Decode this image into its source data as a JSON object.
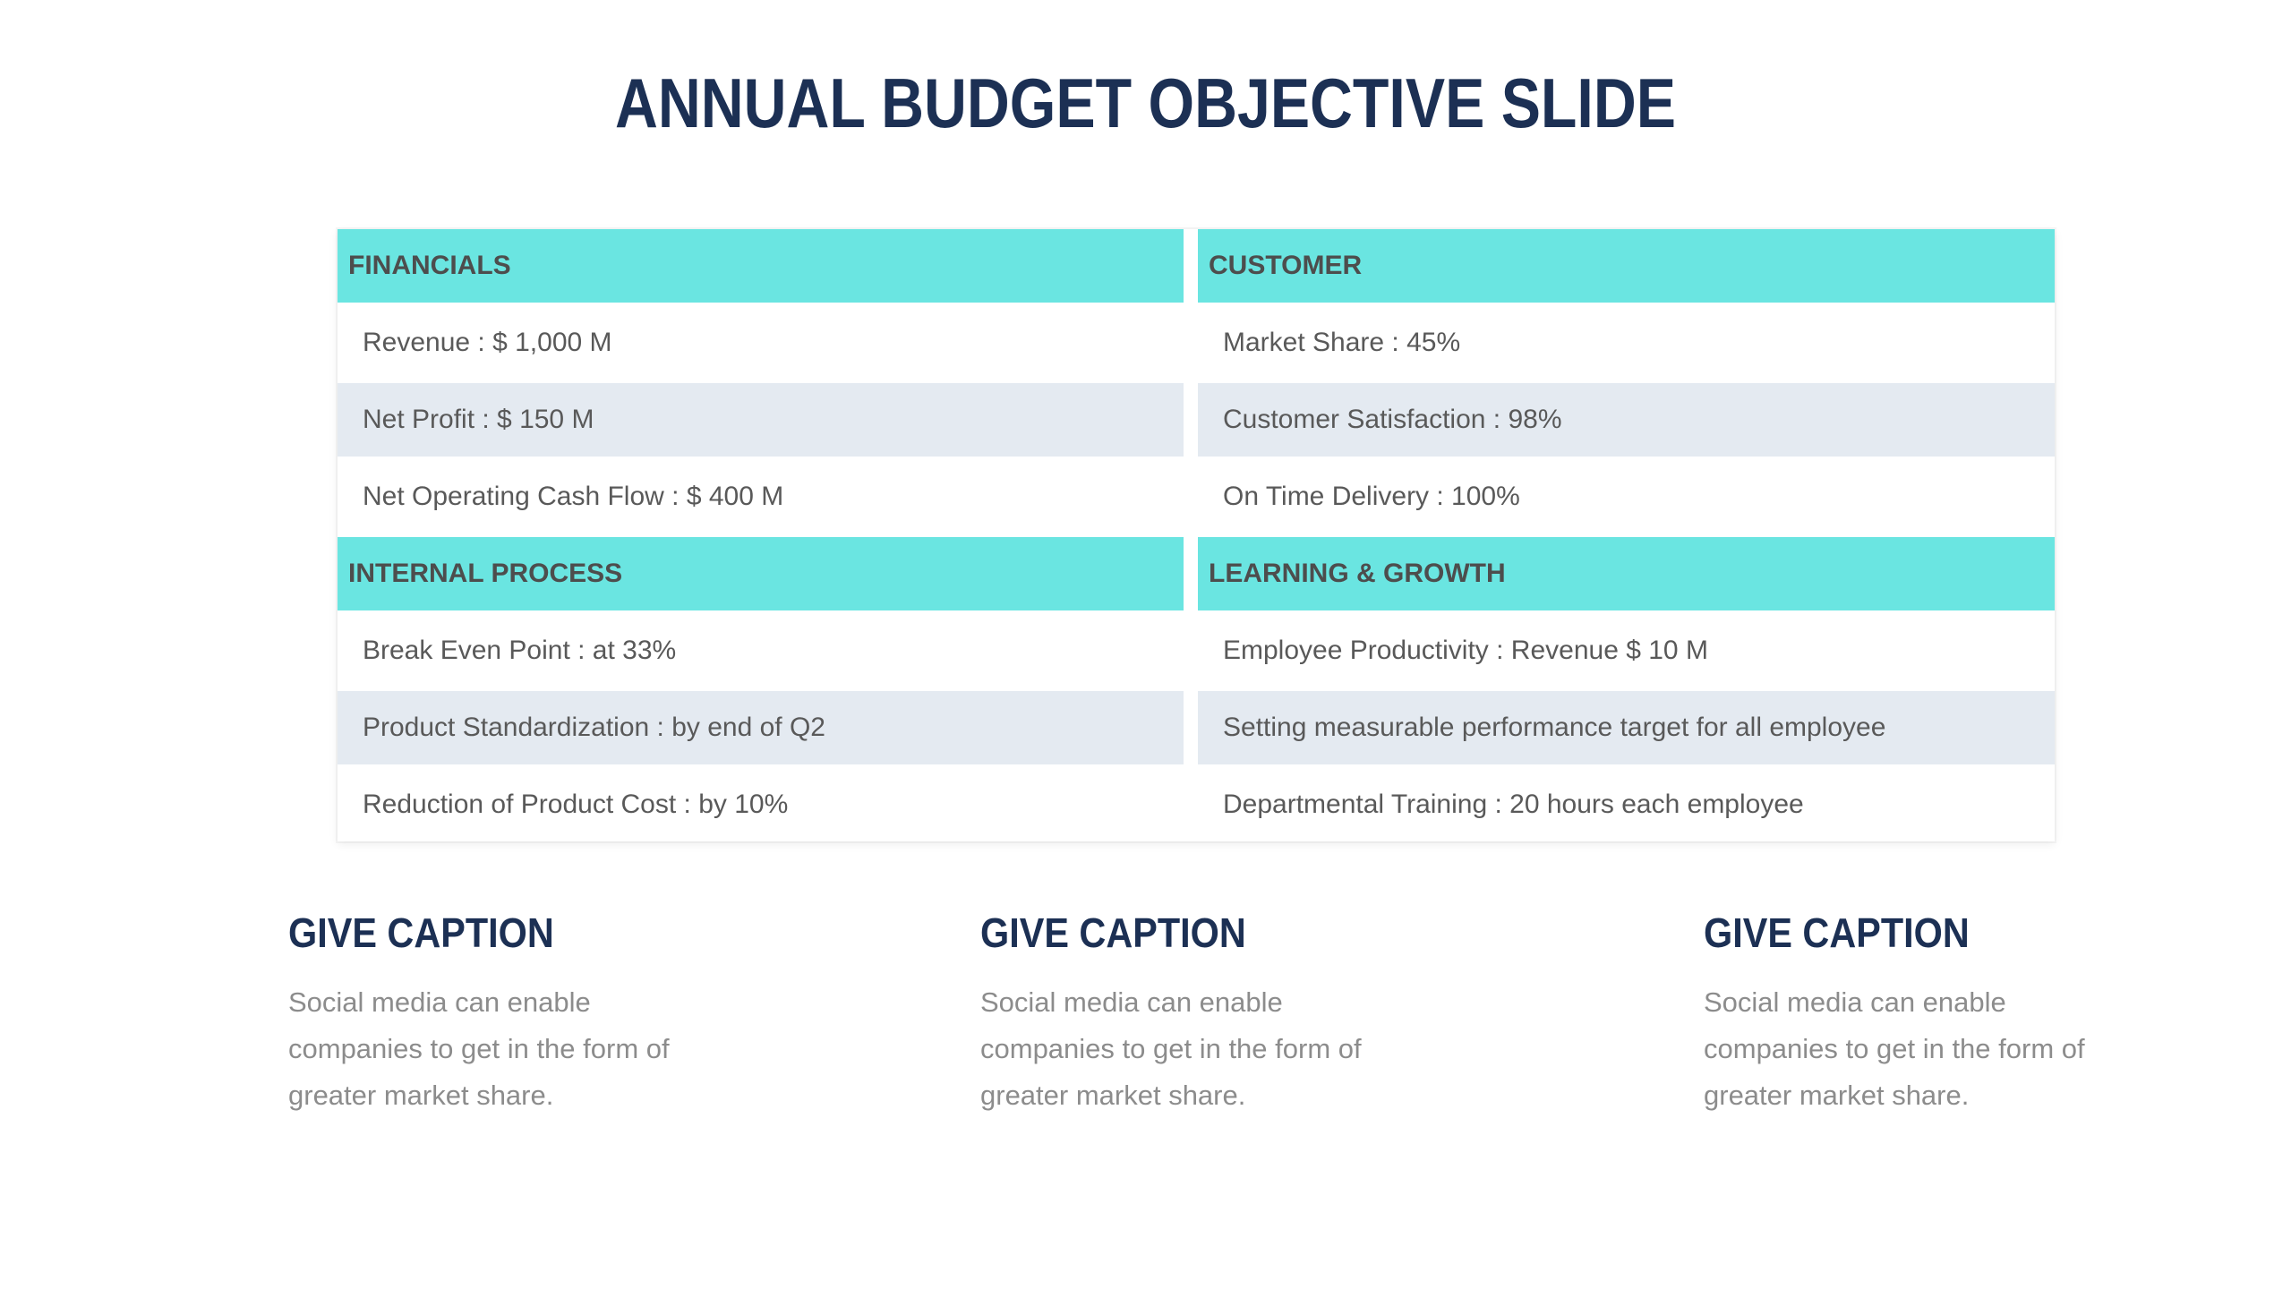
{
  "slide": {
    "title": "ANNUAL BUDGET OBJECTIVE SLIDE"
  },
  "colors": {
    "navy": "#1C3054",
    "turquoise": "#6AE5E1",
    "row_alt": "#E4EAF1",
    "header_text": "#4D4D4D",
    "cell_text": "#595959",
    "caption_text": "#8C8C8C"
  },
  "table": {
    "quadrants": [
      {
        "header": "FINANCIALS",
        "rows": [
          "Revenue : $ 1,000 M",
          "Net Profit : $ 150 M",
          "Net Operating Cash Flow : $ 400 M"
        ]
      },
      {
        "header": "CUSTOMER",
        "rows": [
          "Market Share : 45%",
          "Customer Satisfaction : 98%",
          "On Time Delivery : 100%"
        ]
      },
      {
        "header": "INTERNAL PROCESS",
        "rows": [
          "Break Even Point : at 33%",
          "Product Standardization : by end of Q2",
          "Reduction of Product Cost : by 10%"
        ]
      },
      {
        "header": "LEARNING & GROWTH",
        "rows": [
          "Employee Productivity : Revenue $ 10 M",
          "Setting measurable performance target for all employee",
          "Departmental Training : 20 hours each employee"
        ]
      }
    ]
  },
  "captions": [
    {
      "title": "GIVE CAPTION",
      "lines": [
        "Social media can enable",
        "companies to get in the form of",
        "greater market share."
      ]
    },
    {
      "title": "GIVE CAPTION",
      "lines": [
        "Social media can enable",
        "companies to get in the form of",
        "greater market share."
      ]
    },
    {
      "title": "GIVE CAPTION",
      "lines": [
        "Social media can enable",
        "companies to get in the form of",
        "greater market share."
      ]
    }
  ]
}
